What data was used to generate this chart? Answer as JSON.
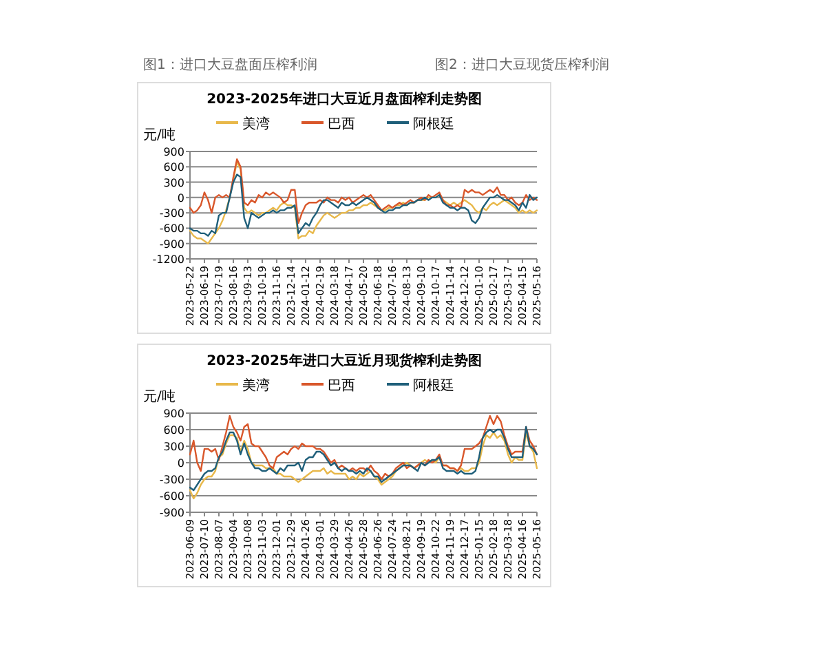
{
  "chart_data": [
    {
      "type": "line",
      "title": "2023-2025年进口大豆近月盘面榨利走势图",
      "annotations": [
        "图1：进口大豆盘面压榨利润"
      ],
      "ylabel": "元/吨",
      "ylim": [
        -1200,
        900
      ],
      "yticks": [
        -1200,
        -900,
        -600,
        -300,
        0,
        300,
        600,
        900
      ],
      "grid": "y",
      "legend": "top",
      "categories": [
        "2023-05-22",
        null,
        null,
        null,
        "2023-06-19",
        null,
        null,
        null,
        "2023-07-19",
        null,
        null,
        null,
        "2023-08-16",
        null,
        null,
        null,
        "2023-09-13",
        null,
        null,
        null,
        "2023-10-19",
        null,
        null,
        null,
        "2023-11-16",
        null,
        null,
        null,
        "2023-12-14",
        null,
        null,
        null,
        "2024-01-12",
        null,
        null,
        null,
        "2024-02-19",
        null,
        null,
        null,
        "2024-03-18",
        null,
        null,
        null,
        "2024-04-17",
        null,
        null,
        null,
        "2024-05-20",
        null,
        null,
        null,
        "2024-06-18",
        null,
        null,
        null,
        "2024-07-16",
        null,
        null,
        null,
        "2024-08-13",
        null,
        null,
        null,
        "2024-09-10",
        null,
        null,
        null,
        "2024-10-17",
        null,
        null,
        null,
        "2024-11-14",
        null,
        null,
        null,
        "2024-12-12",
        null,
        null,
        null,
        "2025-01-10",
        null,
        null,
        null,
        "2025-02-17",
        null,
        null,
        null,
        "2025-03-17",
        null,
        null,
        null,
        "2025-04-15",
        null,
        null,
        null,
        "2025-05-16"
      ],
      "series": [
        {
          "name": "美湾",
          "color": "#e8b84a",
          "values": [
            -650,
            -750,
            -800,
            -800,
            -850,
            -900,
            -800,
            -700,
            -600,
            -450,
            -250,
            0,
            350,
            700,
            550,
            -200,
            -300,
            -250,
            -300,
            -350,
            -300,
            -300,
            -250,
            -200,
            -250,
            -150,
            -100,
            -150,
            -150,
            -200,
            -800,
            -750,
            -750,
            -650,
            -700,
            -550,
            -450,
            -350,
            -300,
            -350,
            -400,
            -350,
            -300,
            -300,
            -250,
            -250,
            -200,
            -200,
            -150,
            -150,
            -100,
            -150,
            -200,
            -250,
            -250,
            -200,
            -200,
            -150,
            -150,
            -100,
            -150,
            -100,
            -100,
            -50,
            -50,
            -50,
            0,
            0,
            0,
            50,
            -50,
            -100,
            -150,
            -100,
            -150,
            -100,
            -50,
            -100,
            -150,
            -250,
            -300,
            -200,
            -250,
            -150,
            -100,
            -150,
            -100,
            -50,
            -100,
            -150,
            -200,
            -300,
            -250,
            -300,
            -250,
            -300,
            -250
          ]
        },
        {
          "name": "巴西",
          "color": "#d9572b",
          "values": [
            -200,
            -300,
            -250,
            -150,
            100,
            -50,
            -300,
            0,
            50,
            0,
            50,
            0,
            400,
            750,
            600,
            -100,
            -150,
            -50,
            -100,
            50,
            0,
            100,
            50,
            100,
            50,
            0,
            -100,
            -50,
            150,
            150,
            -500,
            -300,
            -150,
            -100,
            -100,
            -100,
            -50,
            -100,
            0,
            -50,
            -50,
            -100,
            0,
            -50,
            0,
            -100,
            -50,
            0,
            50,
            0,
            50,
            -50,
            -150,
            -250,
            -200,
            -150,
            -200,
            -150,
            -100,
            -150,
            -100,
            -50,
            -100,
            -50,
            0,
            -50,
            50,
            0,
            50,
            100,
            -50,
            -150,
            -150,
            -200,
            -150,
            -200,
            150,
            100,
            150,
            100,
            100,
            50,
            100,
            150,
            100,
            200,
            50,
            50,
            -50,
            0,
            -100,
            -150,
            -100,
            50,
            -50,
            0,
            -50
          ]
        },
        {
          "name": "阿根廷",
          "color": "#1f5f7a",
          "values": [
            -600,
            -650,
            -650,
            -700,
            -700,
            -750,
            -650,
            -700,
            -350,
            -300,
            -300,
            0,
            300,
            450,
            400,
            -400,
            -600,
            -300,
            -350,
            -400,
            -350,
            -300,
            -300,
            -250,
            -300,
            -250,
            -250,
            -200,
            -200,
            -150,
            -700,
            -600,
            -500,
            -550,
            -400,
            -300,
            -150,
            -50,
            -50,
            -100,
            -150,
            -200,
            -100,
            -150,
            -150,
            -100,
            -150,
            -100,
            -50,
            0,
            -50,
            -100,
            -200,
            -250,
            -300,
            -250,
            -250,
            -200,
            -200,
            -150,
            -150,
            -100,
            -100,
            -50,
            -50,
            0,
            -50,
            0,
            0,
            50,
            -100,
            -150,
            -200,
            -200,
            -250,
            -200,
            -200,
            -250,
            -450,
            -500,
            -400,
            -200,
            -100,
            0,
            0,
            50,
            0,
            -50,
            -50,
            -100,
            -150,
            -250,
            -100,
            -200,
            50,
            -50,
            0
          ]
        }
      ]
    },
    {
      "type": "line",
      "title": "2023-2025年进口大豆近月现货榨利走势图",
      "annotations": [
        "图2：进口大豆现货压榨利润"
      ],
      "ylabel": "元/吨",
      "ylim": [
        -900,
        900
      ],
      "yticks": [
        -900,
        -600,
        -300,
        0,
        300,
        600,
        900
      ],
      "grid": "y",
      "legend": "top",
      "categories": [
        "2023-06-09",
        null,
        null,
        null,
        "2023-07-10",
        null,
        null,
        null,
        "2023-08-07",
        null,
        null,
        null,
        "2023-09-04",
        null,
        null,
        null,
        "2023-10-08",
        null,
        null,
        null,
        "2023-11-03",
        null,
        null,
        null,
        "2023-12-01",
        null,
        null,
        null,
        "2023-12-29",
        null,
        null,
        null,
        "2024-01-26",
        null,
        null,
        null,
        "2024-03-01",
        null,
        null,
        null,
        "2024-03-29",
        null,
        null,
        null,
        "2024-04-26",
        null,
        null,
        null,
        "2024-05-28",
        null,
        null,
        null,
        "2024-06-26",
        null,
        null,
        null,
        "2024-07-24",
        null,
        null,
        null,
        "2024-08-21",
        null,
        null,
        null,
        "2024-09-19",
        null,
        null,
        null,
        "2024-10-22",
        null,
        null,
        null,
        "2024-11-19",
        null,
        null,
        null,
        "2024-12-17",
        null,
        null,
        null,
        "2025-01-15",
        null,
        null,
        null,
        "2025-02-18",
        null,
        null,
        null,
        "2025-03-18",
        null,
        null,
        null,
        "2025-04-16",
        null,
        null,
        null,
        "2025-05-16"
      ],
      "series": [
        {
          "name": "美湾",
          "color": "#e8b84a",
          "values": [
            -500,
            -650,
            -550,
            -400,
            -300,
            -250,
            -250,
            -150,
            100,
            150,
            350,
            500,
            500,
            450,
            200,
            400,
            250,
            0,
            -50,
            -50,
            -50,
            -100,
            -100,
            -100,
            -200,
            -200,
            -250,
            -250,
            -250,
            -300,
            -350,
            -300,
            -250,
            -200,
            -150,
            -150,
            -150,
            -100,
            -200,
            -150,
            -200,
            -200,
            -200,
            -200,
            -300,
            -250,
            -300,
            -200,
            -250,
            -200,
            -150,
            -250,
            -300,
            -400,
            -350,
            -300,
            -250,
            -150,
            -100,
            -50,
            0,
            -50,
            -100,
            -50,
            0,
            50,
            0,
            50,
            0,
            100,
            -50,
            -50,
            -100,
            -100,
            -150,
            -100,
            -150,
            -150,
            -100,
            -100,
            0,
            300,
            500,
            450,
            550,
            450,
            500,
            400,
            150,
            0,
            100,
            50,
            50,
            550,
            300,
            200,
            -100
          ]
        },
        {
          "name": "巴西",
          "color": "#d9572b",
          "values": [
            150,
            400,
            0,
            -150,
            250,
            250,
            200,
            250,
            50,
            300,
            550,
            850,
            650,
            550,
            400,
            650,
            700,
            350,
            300,
            300,
            200,
            100,
            -50,
            -100,
            100,
            150,
            200,
            150,
            250,
            300,
            250,
            350,
            300,
            300,
            300,
            250,
            250,
            200,
            100,
            0,
            50,
            -100,
            -50,
            -100,
            -150,
            -100,
            -150,
            -100,
            -100,
            -150,
            -50,
            -150,
            -200,
            -300,
            -200,
            -250,
            -200,
            -100,
            -50,
            0,
            -100,
            -50,
            -100,
            -50,
            0,
            -50,
            50,
            0,
            50,
            150,
            -50,
            -50,
            -100,
            -100,
            -150,
            -50,
            250,
            250,
            250,
            300,
            350,
            450,
            650,
            850,
            700,
            850,
            750,
            500,
            300,
            150,
            200,
            200,
            200,
            650,
            400,
            300,
            150
          ]
        },
        {
          "name": "阿根廷",
          "color": "#1f5f7a",
          "values": [
            -450,
            -500,
            -400,
            -300,
            -200,
            -150,
            -150,
            -100,
            100,
            200,
            400,
            550,
            550,
            400,
            150,
            350,
            150,
            0,
            -100,
            -100,
            -150,
            -150,
            -100,
            -150,
            -200,
            -100,
            -150,
            -50,
            -50,
            -50,
            0,
            -150,
            50,
            100,
            100,
            200,
            200,
            150,
            50,
            -50,
            0,
            -100,
            -150,
            -100,
            -150,
            -150,
            -200,
            -150,
            -200,
            -100,
            -150,
            -250,
            -250,
            -350,
            -300,
            -250,
            -200,
            -150,
            -100,
            -50,
            -50,
            -50,
            -100,
            -150,
            0,
            -50,
            0,
            50,
            50,
            100,
            -100,
            -150,
            -150,
            -150,
            -200,
            -150,
            -200,
            -200,
            -200,
            -150,
            100,
            450,
            550,
            600,
            550,
            600,
            600,
            450,
            250,
            100,
            100,
            100,
            100,
            650,
            300,
            250,
            150
          ]
        }
      ]
    }
  ]
}
